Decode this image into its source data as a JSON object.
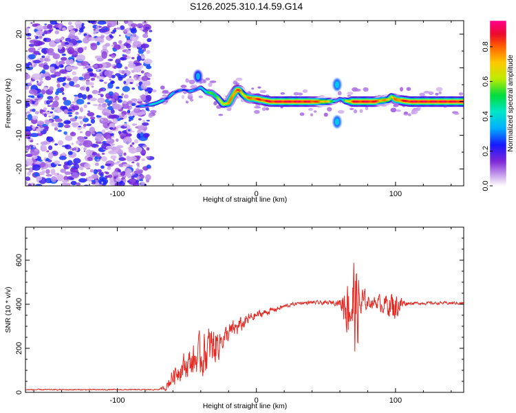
{
  "title": "S126.2025.310.14.59.G14",
  "chart_data": [
    {
      "type": "heatmap",
      "title": "S126.2025.310.14.59.G14",
      "xlabel": "Height of straight line (km)",
      "ylabel": "Frequency (Hz)",
      "xlim": [
        -166,
        149
      ],
      "ylim": [
        -25,
        24
      ],
      "xticks": [
        "-100",
        "0",
        "100"
      ],
      "xtick_values": [
        -100,
        0,
        100
      ],
      "yticks": [
        "-20",
        "-10",
        "0",
        "10",
        "20"
      ],
      "ytick_values": [
        -20,
        -10,
        0,
        10,
        20
      ],
      "colorbar": {
        "label": "Normalized spectral amplitude",
        "range": [
          0,
          0.95
        ],
        "ticks": [
          "0.0",
          "0.2",
          "0.4",
          "0.6",
          "0.8"
        ],
        "tick_values": [
          0.0,
          0.2,
          0.4,
          0.6,
          0.8
        ]
      },
      "ridge": {
        "x": [
          -86,
          -80,
          -75,
          -72,
          -68,
          -64,
          -60,
          -56,
          -52,
          -48,
          -44,
          -40,
          -36,
          -32,
          -28,
          -24,
          -20,
          -17,
          -14,
          -12,
          -10,
          -8,
          -5,
          0,
          10,
          20,
          30,
          40,
          50,
          55,
          58,
          60,
          62,
          65,
          70,
          80,
          85,
          90,
          95,
          97,
          100,
          110,
          120,
          130,
          140,
          149
        ],
        "y": [
          -1.5,
          -1.2,
          -0.8,
          -0.5,
          0.2,
          1.0,
          2.5,
          3.2,
          3.5,
          3.0,
          3.5,
          4.2,
          2.8,
          2.5,
          1.2,
          -0.8,
          -0.5,
          1.8,
          3.5,
          3.3,
          2.2,
          1.5,
          1.0,
          0.8,
          0.0,
          0.0,
          0.0,
          0.0,
          0.0,
          0.1,
          0.3,
          0.8,
          0.5,
          0.1,
          0.0,
          0.0,
          0.0,
          0.3,
          0.6,
          1.5,
          0.6,
          0.0,
          0.0,
          0.0,
          0.0,
          0.0
        ],
        "amplitude": [
          0.25,
          0.3,
          0.35,
          0.45,
          0.4,
          0.3,
          0.35,
          0.3,
          0.25,
          0.3,
          0.35,
          0.3,
          0.5,
          0.55,
          0.6,
          0.65,
          0.75,
          0.8,
          0.85,
          0.85,
          0.7,
          0.75,
          0.8,
          0.85,
          0.9,
          0.92,
          0.92,
          0.9,
          0.75,
          0.6,
          0.3,
          0.35,
          0.4,
          0.6,
          0.9,
          0.92,
          0.9,
          0.8,
          0.75,
          0.65,
          0.8,
          0.92,
          0.92,
          0.92,
          0.92,
          0.92
        ]
      },
      "noise_region_x": [
        -166,
        -76
      ],
      "noise_amplitude_range": [
        0.05,
        0.3
      ],
      "side_lobes": [
        {
          "x": -42,
          "y": 7.5,
          "amplitude": 0.25
        },
        {
          "x": 58,
          "y": -6,
          "amplitude": 0.3
        },
        {
          "x": 58,
          "y": 5,
          "amplitude": 0.3
        }
      ]
    },
    {
      "type": "line",
      "xlabel": "Height of straight line (km)",
      "ylabel": "SNR (10 * v/v)",
      "xlim": [
        -166,
        149
      ],
      "ylim": [
        0,
        750
      ],
      "xticks": [
        "-100",
        "0",
        "100"
      ],
      "xtick_values": [
        -100,
        0,
        100
      ],
      "yticks": [
        "0",
        "200",
        "400",
        "600"
      ],
      "ytick_values": [
        0,
        200,
        400,
        600
      ],
      "series": [
        {
          "name": "SNR",
          "color": "#e8261f",
          "x": [
            -166,
            -140,
            -120,
            -100,
            -80,
            -70,
            -65,
            -62,
            -58,
            -55,
            -50,
            -45,
            -40,
            -35,
            -30,
            -25,
            -20,
            -15,
            -10,
            -5,
            0,
            10,
            20,
            30,
            40,
            50,
            55,
            60,
            63,
            66,
            68,
            70,
            72,
            74,
            77,
            80,
            85,
            90,
            95,
            98,
            100,
            103,
            106,
            110,
            120,
            130,
            140,
            149
          ],
          "baseline": [
            12,
            12,
            12,
            12,
            12,
            13,
            22,
            55,
            90,
            110,
            125,
            145,
            165,
            185,
            210,
            240,
            265,
            290,
            310,
            335,
            350,
            370,
            390,
            405,
            408,
            405,
            410,
            405,
            410,
            405,
            400,
            390,
            385,
            390,
            405,
            410,
            410,
            405,
            400,
            390,
            395,
            400,
            405,
            405,
            405,
            405,
            405,
            405
          ],
          "spread": [
            4,
            4,
            4,
            4,
            4,
            4,
            20,
            55,
            70,
            80,
            90,
            110,
            140,
            160,
            150,
            70,
            70,
            60,
            50,
            40,
            30,
            20,
            15,
            10,
            12,
            14,
            15,
            25,
            140,
            220,
            300,
            340,
            290,
            200,
            100,
            40,
            40,
            60,
            80,
            120,
            100,
            70,
            25,
            10,
            10,
            10,
            10,
            10
          ]
        }
      ],
      "ymax_clipped": 750
    }
  ]
}
